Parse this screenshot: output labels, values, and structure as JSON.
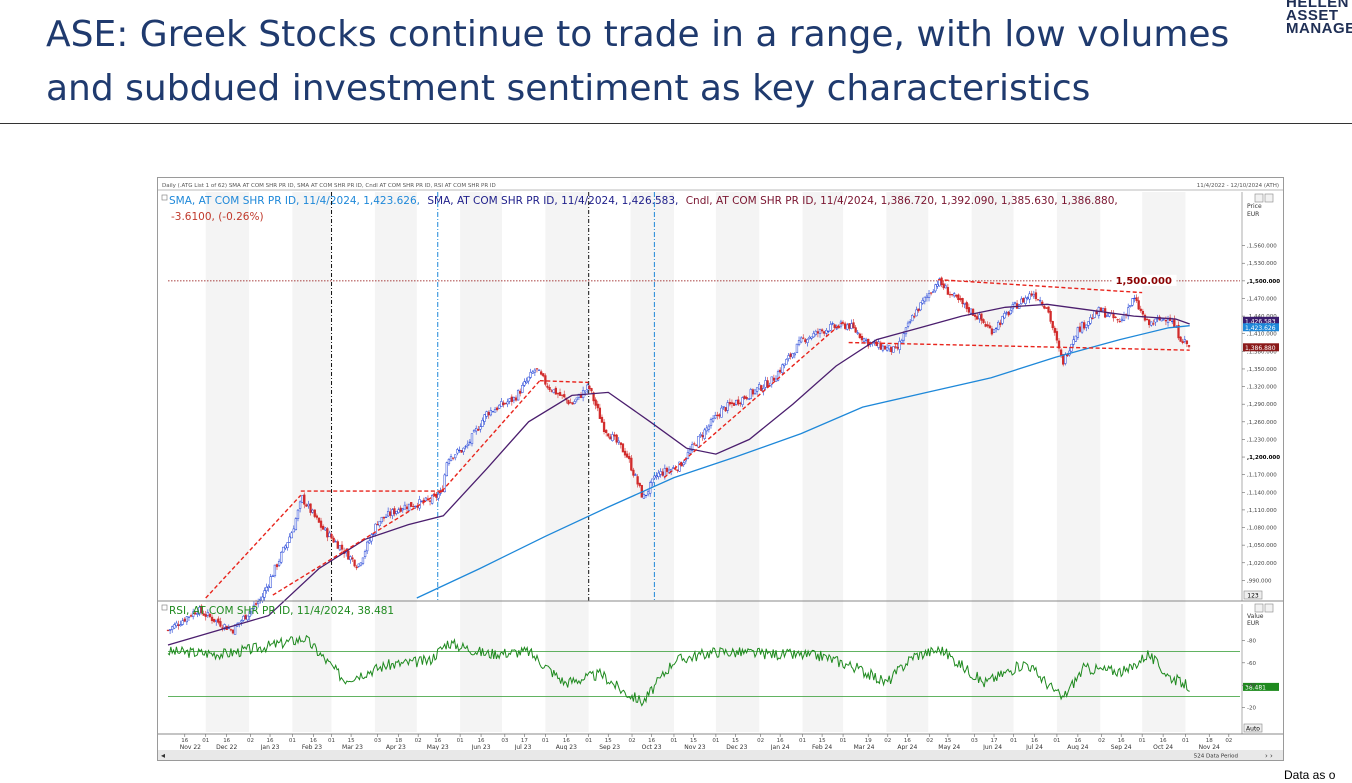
{
  "page": {
    "title": "ASE: Greek Stocks continue to trade in a range, with low volumes and subdued investment sentiment as key characteristics",
    "logo_lines": [
      "HELLEN",
      "ASSET",
      "MANAGE"
    ],
    "footer_note": "Data as o"
  },
  "chart_header": {
    "top_label": "Daily (.ATG List 1 of 62) SMA AT COM SHR PR ID, SMA AT COM SHR PR ID, Cndl AT COM SHR PR ID, RSI AT COM SHR PR ID",
    "date_range": "11/4/2022 - 12/10/2024 (ATH)",
    "legend_sma200": "SMA, AT COM SHR PR ID, 11/4/2024, 1,423.626,",
    "legend_sma50": "SMA, AT COM SHR PR ID, 11/4/2024, 1,426.583,",
    "legend_cndl": "Cndl, AT COM SHR PR ID, 11/4/2024, 1,386.720, 1,392.090, 1,385.630, 1,386.880,",
    "legend_change": "-3.6100, (-0.26%)",
    "rsi_legend": "RSI, AT COM SHR PR ID, 11/4/2024, 38.481",
    "price_axis_title": "Price",
    "price_axis_unit": "EUR",
    "rsi_axis_title": "Value",
    "rsi_axis_unit": "EUR",
    "resistance_label": "1,500.000",
    "last_sma50_tag": "1,426.583",
    "last_sma200_tag": "1,423.626",
    "last_price_tag": "1,386.880",
    "last_rsi_tag": "38.481",
    "scale_button": "123",
    "auto_button": "Auto",
    "periods_label": "524 Data Period"
  },
  "colors": {
    "title": "#1f3a6e",
    "sma200": "#1e88d9",
    "sma50": "#4b1e6e",
    "up_candle": "#1d3fd6",
    "down_candle": "#d12a2a",
    "trendline": "#e8241c",
    "rsi": "#1f8a1f",
    "resistance": "#8b0000"
  },
  "chart_data": {
    "type": "candlestick",
    "price_axis": {
      "min": 960,
      "max": 1590,
      "ticks": [
        990,
        1020,
        1050,
        1080,
        1110,
        1140,
        1170,
        1200,
        1230,
        1260,
        1290,
        1320,
        1350,
        1380,
        1410,
        1440,
        1470,
        1500,
        1530,
        1560
      ],
      "bold_ticks": [
        1200,
        1500
      ]
    },
    "rsi_axis": {
      "min": 0,
      "max": 100,
      "ticks": [
        20,
        40,
        60,
        80
      ],
      "overbought": 70,
      "oversold": 30
    },
    "x_axis": {
      "start": "2022-11-04",
      "end": "2024-12-10",
      "day_ticks": [
        {
          "d": "2022-11-16",
          "l": "16"
        },
        {
          "d": "2022-12-01",
          "l": "01"
        },
        {
          "d": "2022-12-16",
          "l": "16"
        },
        {
          "d": "2023-01-02",
          "l": "02"
        },
        {
          "d": "2023-01-16",
          "l": "16"
        },
        {
          "d": "2023-02-01",
          "l": "01"
        },
        {
          "d": "2023-02-16",
          "l": "16"
        },
        {
          "d": "2023-03-01",
          "l": "01"
        },
        {
          "d": "2023-03-15",
          "l": "15"
        },
        {
          "d": "2023-04-03",
          "l": "03"
        },
        {
          "d": "2023-04-18",
          "l": "18"
        },
        {
          "d": "2023-05-02",
          "l": "02"
        },
        {
          "d": "2023-05-16",
          "l": "16"
        },
        {
          "d": "2023-06-01",
          "l": "01"
        },
        {
          "d": "2023-06-16",
          "l": "16"
        },
        {
          "d": "2023-07-03",
          "l": "03"
        },
        {
          "d": "2023-07-17",
          "l": "17"
        },
        {
          "d": "2023-08-01",
          "l": "01"
        },
        {
          "d": "2023-08-16",
          "l": "16"
        },
        {
          "d": "2023-09-01",
          "l": "01"
        },
        {
          "d": "2023-09-15",
          "l": "15"
        },
        {
          "d": "2023-10-02",
          "l": "02"
        },
        {
          "d": "2023-10-16",
          "l": "16"
        },
        {
          "d": "2023-11-01",
          "l": "01"
        },
        {
          "d": "2023-11-15",
          "l": "15"
        },
        {
          "d": "2023-12-01",
          "l": "01"
        },
        {
          "d": "2023-12-15",
          "l": "15"
        },
        {
          "d": "2024-01-02",
          "l": "02"
        },
        {
          "d": "2024-01-16",
          "l": "16"
        },
        {
          "d": "2024-02-01",
          "l": "01"
        },
        {
          "d": "2024-02-15",
          "l": "15"
        },
        {
          "d": "2024-03-01",
          "l": "01"
        },
        {
          "d": "2024-03-19",
          "l": "19"
        },
        {
          "d": "2024-04-02",
          "l": "02"
        },
        {
          "d": "2024-04-16",
          "l": "16"
        },
        {
          "d": "2024-05-02",
          "l": "02"
        },
        {
          "d": "2024-05-15",
          "l": "15"
        },
        {
          "d": "2024-06-03",
          "l": "03"
        },
        {
          "d": "2024-06-17",
          "l": "17"
        },
        {
          "d": "2024-07-01",
          "l": "01"
        },
        {
          "d": "2024-07-16",
          "l": "16"
        },
        {
          "d": "2024-08-01",
          "l": "01"
        },
        {
          "d": "2024-08-16",
          "l": "16"
        },
        {
          "d": "2024-09-02",
          "l": "02"
        },
        {
          "d": "2024-09-16",
          "l": "16"
        },
        {
          "d": "2024-10-01",
          "l": "01"
        },
        {
          "d": "2024-10-16",
          "l": "16"
        },
        {
          "d": "2024-11-01",
          "l": "01"
        },
        {
          "d": "2024-11-18",
          "l": "18"
        },
        {
          "d": "2024-12-02",
          "l": "02"
        }
      ],
      "months": [
        {
          "d": "2022-11-20",
          "l": "Nov 22"
        },
        {
          "d": "2022-12-16",
          "l": "Dec 22"
        },
        {
          "d": "2023-01-16",
          "l": "Jan 23"
        },
        {
          "d": "2023-02-15",
          "l": "Feb 23"
        },
        {
          "d": "2023-03-16",
          "l": "Mar 23"
        },
        {
          "d": "2023-04-16",
          "l": "Apr 23"
        },
        {
          "d": "2023-05-16",
          "l": "May 23"
        },
        {
          "d": "2023-06-16",
          "l": "Jun 23"
        },
        {
          "d": "2023-07-16",
          "l": "Jul 23"
        },
        {
          "d": "2023-08-16",
          "l": "Aug 23"
        },
        {
          "d": "2023-09-16",
          "l": "Sep 23"
        },
        {
          "d": "2023-10-16",
          "l": "Oct 23"
        },
        {
          "d": "2023-11-16",
          "l": "Nov 23"
        },
        {
          "d": "2023-12-16",
          "l": "Dec 23"
        },
        {
          "d": "2024-01-16",
          "l": "Jan 24"
        },
        {
          "d": "2024-02-15",
          "l": "Feb 24"
        },
        {
          "d": "2024-03-16",
          "l": "Mar 24"
        },
        {
          "d": "2024-04-16",
          "l": "Apr 24"
        },
        {
          "d": "2024-05-16",
          "l": "May 24"
        },
        {
          "d": "2024-06-16",
          "l": "Jun 24"
        },
        {
          "d": "2024-07-16",
          "l": "Jul 24"
        },
        {
          "d": "2024-08-16",
          "l": "Aug 24"
        },
        {
          "d": "2024-09-16",
          "l": "Sep 24"
        },
        {
          "d": "2024-10-16",
          "l": "Oct 24"
        },
        {
          "d": "2024-11-18",
          "l": "Nov 24"
        }
      ]
    },
    "close_series": [
      {
        "d": "2022-11-04",
        "v": 905
      },
      {
        "d": "2022-11-25",
        "v": 940
      },
      {
        "d": "2022-12-20",
        "v": 905
      },
      {
        "d": "2023-01-10",
        "v": 960
      },
      {
        "d": "2023-02-01",
        "v": 1075
      },
      {
        "d": "2023-02-08",
        "v": 1130
      },
      {
        "d": "2023-02-22",
        "v": 1080
      },
      {
        "d": "2023-03-10",
        "v": 1040
      },
      {
        "d": "2023-03-20",
        "v": 1015
      },
      {
        "d": "2023-04-03",
        "v": 1090
      },
      {
        "d": "2023-04-20",
        "v": 1115
      },
      {
        "d": "2023-05-10",
        "v": 1125
      },
      {
        "d": "2023-05-19",
        "v": 1140
      },
      {
        "d": "2023-05-23",
        "v": 1200
      },
      {
        "d": "2023-06-05",
        "v": 1215
      },
      {
        "d": "2023-06-20",
        "v": 1275
      },
      {
        "d": "2023-07-10",
        "v": 1300
      },
      {
        "d": "2023-07-25",
        "v": 1350
      },
      {
        "d": "2023-08-03",
        "v": 1320
      },
      {
        "d": "2023-08-20",
        "v": 1290
      },
      {
        "d": "2023-09-01",
        "v": 1320
      },
      {
        "d": "2023-09-12",
        "v": 1250
      },
      {
        "d": "2023-09-28",
        "v": 1205
      },
      {
        "d": "2023-10-10",
        "v": 1130
      },
      {
        "d": "2023-10-20",
        "v": 1170
      },
      {
        "d": "2023-11-05",
        "v": 1185
      },
      {
        "d": "2023-11-20",
        "v": 1235
      },
      {
        "d": "2023-12-05",
        "v": 1280
      },
      {
        "d": "2023-12-20",
        "v": 1300
      },
      {
        "d": "2024-01-10",
        "v": 1330
      },
      {
        "d": "2024-02-01",
        "v": 1400
      },
      {
        "d": "2024-02-20",
        "v": 1420
      },
      {
        "d": "2024-03-05",
        "v": 1425
      },
      {
        "d": "2024-03-19",
        "v": 1395
      },
      {
        "d": "2024-04-08",
        "v": 1380
      },
      {
        "d": "2024-04-20",
        "v": 1440
      },
      {
        "d": "2024-05-08",
        "v": 1500
      },
      {
        "d": "2024-05-20",
        "v": 1470
      },
      {
        "d": "2024-06-05",
        "v": 1440
      },
      {
        "d": "2024-06-15",
        "v": 1415
      },
      {
        "d": "2024-07-01",
        "v": 1455
      },
      {
        "d": "2024-07-15",
        "v": 1480
      },
      {
        "d": "2024-07-25",
        "v": 1455
      },
      {
        "d": "2024-08-05",
        "v": 1360
      },
      {
        "d": "2024-08-15",
        "v": 1415
      },
      {
        "d": "2024-09-01",
        "v": 1450
      },
      {
        "d": "2024-09-15",
        "v": 1430
      },
      {
        "d": "2024-09-25",
        "v": 1470
      },
      {
        "d": "2024-10-05",
        "v": 1425
      },
      {
        "d": "2024-10-20",
        "v": 1440
      },
      {
        "d": "2024-10-28",
        "v": 1405
      },
      {
        "d": "2024-11-04",
        "v": 1386.88
      }
    ],
    "sma50_series": [
      {
        "d": "2022-11-04",
        "v": 880
      },
      {
        "d": "2023-01-15",
        "v": 930
      },
      {
        "d": "2023-02-20",
        "v": 1010
      },
      {
        "d": "2023-03-25",
        "v": 1060
      },
      {
        "d": "2023-04-25",
        "v": 1085
      },
      {
        "d": "2023-05-20",
        "v": 1100
      },
      {
        "d": "2023-06-20",
        "v": 1180
      },
      {
        "d": "2023-07-20",
        "v": 1260
      },
      {
        "d": "2023-08-20",
        "v": 1305
      },
      {
        "d": "2023-09-15",
        "v": 1310
      },
      {
        "d": "2023-10-15",
        "v": 1260
      },
      {
        "d": "2023-11-10",
        "v": 1215
      },
      {
        "d": "2023-12-01",
        "v": 1205
      },
      {
        "d": "2023-12-25",
        "v": 1230
      },
      {
        "d": "2024-01-25",
        "v": 1290
      },
      {
        "d": "2024-02-25",
        "v": 1355
      },
      {
        "d": "2024-03-25",
        "v": 1400
      },
      {
        "d": "2024-04-25",
        "v": 1420
      },
      {
        "d": "2024-05-25",
        "v": 1440
      },
      {
        "d": "2024-06-25",
        "v": 1455
      },
      {
        "d": "2024-07-25",
        "v": 1460
      },
      {
        "d": "2024-08-25",
        "v": 1450
      },
      {
        "d": "2024-09-25",
        "v": 1440
      },
      {
        "d": "2024-10-25",
        "v": 1435
      },
      {
        "d": "2024-11-04",
        "v": 1426.583
      }
    ],
    "sma200_series": [
      {
        "d": "2023-05-01",
        "v": 960
      },
      {
        "d": "2023-06-15",
        "v": 1010
      },
      {
        "d": "2023-08-01",
        "v": 1065
      },
      {
        "d": "2023-09-15",
        "v": 1115
      },
      {
        "d": "2023-11-01",
        "v": 1165
      },
      {
        "d": "2023-12-15",
        "v": 1200
      },
      {
        "d": "2024-01-31",
        "v": 1240
      },
      {
        "d": "2024-03-15",
        "v": 1285
      },
      {
        "d": "2024-04-30",
        "v": 1310
      },
      {
        "d": "2024-06-15",
        "v": 1335
      },
      {
        "d": "2024-07-31",
        "v": 1370
      },
      {
        "d": "2024-09-15",
        "v": 1400
      },
      {
        "d": "2024-10-20",
        "v": 1420
      },
      {
        "d": "2024-11-04",
        "v": 1423.626
      }
    ],
    "rsi_series": [
      {
        "d": "2022-11-04",
        "v": 70
      },
      {
        "d": "2022-12-15",
        "v": 68
      },
      {
        "d": "2023-01-15",
        "v": 75
      },
      {
        "d": "2023-02-10",
        "v": 82
      },
      {
        "d": "2023-03-10",
        "v": 45
      },
      {
        "d": "2023-04-10",
        "v": 58
      },
      {
        "d": "2023-05-10",
        "v": 62
      },
      {
        "d": "2023-05-23",
        "v": 78
      },
      {
        "d": "2023-06-20",
        "v": 68
      },
      {
        "d": "2023-07-20",
        "v": 70
      },
      {
        "d": "2023-08-15",
        "v": 42
      },
      {
        "d": "2023-09-10",
        "v": 50
      },
      {
        "d": "2023-09-25",
        "v": 35
      },
      {
        "d": "2023-10-10",
        "v": 25
      },
      {
        "d": "2023-11-01",
        "v": 62
      },
      {
        "d": "2023-12-01",
        "v": 70
      },
      {
        "d": "2024-01-10",
        "v": 68
      },
      {
        "d": "2024-02-15",
        "v": 66
      },
      {
        "d": "2024-03-10",
        "v": 56
      },
      {
        "d": "2024-04-01",
        "v": 42
      },
      {
        "d": "2024-04-20",
        "v": 66
      },
      {
        "d": "2024-05-10",
        "v": 72
      },
      {
        "d": "2024-06-10",
        "v": 42
      },
      {
        "d": "2024-07-10",
        "v": 60
      },
      {
        "d": "2024-08-05",
        "v": 28
      },
      {
        "d": "2024-08-20",
        "v": 55
      },
      {
        "d": "2024-09-20",
        "v": 52
      },
      {
        "d": "2024-10-05",
        "v": 68
      },
      {
        "d": "2024-10-20",
        "v": 48
      },
      {
        "d": "2024-11-04",
        "v": 38.481
      }
    ],
    "resistance_level": 1500,
    "vertical_markers": [
      {
        "d": "2023-03-01",
        "style": "black"
      },
      {
        "d": "2023-05-16",
        "style": "blue"
      },
      {
        "d": "2023-09-01",
        "style": "black"
      },
      {
        "d": "2023-10-18",
        "style": "blue"
      }
    ],
    "trendlines": [
      {
        "from": {
          "d": "2022-12-01",
          "v": 960
        },
        "to": {
          "d": "2023-02-07",
          "v": 1135
        }
      },
      {
        "from": {
          "d": "2023-02-07",
          "v": 1142
        },
        "to": {
          "d": "2023-05-19",
          "v": 1142
        }
      },
      {
        "from": {
          "d": "2023-01-18",
          "v": 965
        },
        "to": {
          "d": "2023-05-19",
          "v": 1142
        }
      },
      {
        "from": {
          "d": "2023-05-19",
          "v": 1142
        },
        "to": {
          "d": "2023-07-28",
          "v": 1330
        }
      },
      {
        "from": {
          "d": "2023-07-28",
          "v": 1330
        },
        "to": {
          "d": "2023-09-01",
          "v": 1327
        }
      },
      {
        "from": {
          "d": "2023-10-25",
          "v": 1165
        },
        "to": {
          "d": "2024-03-01",
          "v": 1430
        }
      },
      {
        "from": {
          "d": "2024-03-05",
          "v": 1395
        },
        "to": {
          "d": "2024-11-04",
          "v": 1382
        }
      },
      {
        "from": {
          "d": "2024-05-08",
          "v": 1502
        },
        "to": {
          "d": "2024-10-01",
          "v": 1480
        }
      }
    ]
  }
}
